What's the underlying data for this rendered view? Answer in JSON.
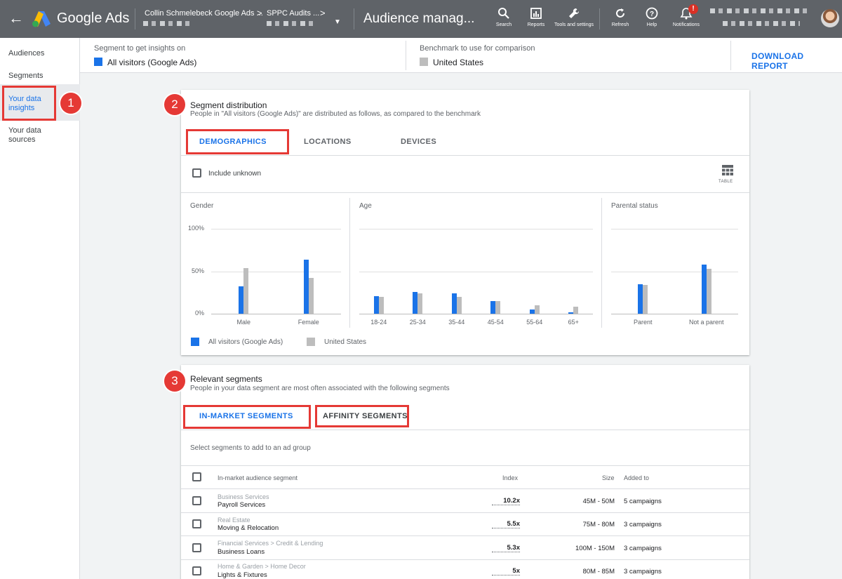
{
  "topbar": {
    "brand": "Google Ads",
    "account_name": "Collin Schmelebeck Google Ads ...",
    "sub_account_name": "SPPC Audits ...",
    "page_title": "Audience manag...",
    "tools": [
      {
        "label": "Search",
        "icon": "search-icon"
      },
      {
        "label": "Reports",
        "icon": "reports-icon"
      },
      {
        "label": "Tools and settings",
        "icon": "wrench-icon"
      },
      {
        "label": "Refresh",
        "icon": "refresh-icon"
      },
      {
        "label": "Help",
        "icon": "help-icon"
      },
      {
        "label": "Notifications",
        "icon": "bell-icon",
        "badge": "!"
      }
    ]
  },
  "leftnav": {
    "items": [
      "Audiences",
      "Segments",
      "Your data insights",
      "Your data sources"
    ],
    "active": "Your data insights"
  },
  "header": {
    "segment_label": "Segment to get insights on",
    "segment_value": "All visitors (Google Ads)",
    "benchmark_label": "Benchmark to use for comparison",
    "benchmark_value": "United States",
    "download": "DOWNLOAD REPORT"
  },
  "steps": [
    "1",
    "2",
    "3"
  ],
  "distribution": {
    "title": "Segment distribution",
    "subtitle": "People in \"All visitors (Google Ads)\" are distributed as follows, as compared to the benchmark",
    "tabs": [
      "DEMOGRAPHICS",
      "LOCATIONS",
      "DEVICES"
    ],
    "active_tab": "DEMOGRAPHICS",
    "include_unknown": "Include unknown",
    "table_label": "TABLE",
    "legend": [
      "All visitors (Google Ads)",
      "United States"
    ],
    "colors": {
      "segment": "#1a73e8",
      "benchmark": "#bdbdbd"
    }
  },
  "chart_data": [
    {
      "type": "bar",
      "title": "Gender",
      "categories": [
        "Male",
        "Female"
      ],
      "yticks": [
        "100%",
        "50%",
        "0%"
      ],
      "ylim": [
        0,
        100
      ],
      "series": [
        {
          "name": "All visitors (Google Ads)",
          "values": [
            32,
            64
          ]
        },
        {
          "name": "United States",
          "values": [
            54,
            42
          ]
        }
      ]
    },
    {
      "type": "bar",
      "title": "Age",
      "categories": [
        "18-24",
        "25-34",
        "35-44",
        "45-54",
        "55-64",
        "65+"
      ],
      "ylim": [
        0,
        100
      ],
      "series": [
        {
          "name": "All visitors (Google Ads)",
          "values": [
            21,
            26,
            24,
            15,
            5,
            2
          ]
        },
        {
          "name": "United States",
          "values": [
            20,
            24,
            20,
            15,
            10,
            8
          ]
        }
      ]
    },
    {
      "type": "bar",
      "title": "Parental status",
      "categories": [
        "Parent",
        "Not a parent"
      ],
      "ylim": [
        0,
        100
      ],
      "series": [
        {
          "name": "All visitors (Google Ads)",
          "values": [
            35,
            58
          ]
        },
        {
          "name": "United States",
          "values": [
            34,
            53
          ]
        }
      ]
    }
  ],
  "relevant": {
    "title": "Relevant segments",
    "subtitle": "People in your data segment are most often associated with the following segments",
    "tabs": [
      "IN-MARKET SEGMENTS",
      "AFFINITY SEGMENTS"
    ],
    "active_tab": "IN-MARKET SEGMENTS",
    "hint": "Select segments to add to an ad group",
    "columns": [
      "In-market audience segment",
      "Index",
      "Size",
      "Added to"
    ],
    "rows": [
      {
        "category": "Business Services",
        "name": "Payroll Services",
        "index": "10.2x",
        "size": "45M - 50M",
        "added": "5 campaigns"
      },
      {
        "category": "Real Estate",
        "name": "Moving & Relocation",
        "index": "5.5x",
        "size": "75M - 80M",
        "added": "3 campaigns"
      },
      {
        "category": "Financial Services > Credit & Lending",
        "name": "Business Loans",
        "index": "5.3x",
        "size": "100M - 150M",
        "added": "3 campaigns"
      },
      {
        "category": "Home & Garden > Home Decor",
        "name": "Lights & Fixtures",
        "index": "5x",
        "size": "80M - 85M",
        "added": "3 campaigns"
      }
    ]
  }
}
